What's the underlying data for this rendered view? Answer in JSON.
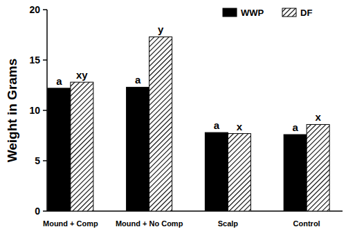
{
  "chart_data": {
    "type": "bar",
    "y_label": "Weight in Grams",
    "categories": [
      "Mound + Comp",
      "Mound + No Comp",
      "Scalp",
      "Control"
    ],
    "series": [
      {
        "name": "WWP",
        "color": "#000000",
        "values": [
          12.2,
          12.3,
          7.8,
          7.6
        ],
        "letters": [
          "a",
          "a",
          "a",
          "a"
        ]
      },
      {
        "name": "DF",
        "color": "#000000",
        "values": [
          12.8,
          17.3,
          7.7,
          8.6
        ],
        "letters": [
          "xy",
          "y",
          "x",
          "x"
        ]
      }
    ],
    "ylim": [
      0,
      20
    ],
    "yticks": [
      0,
      5,
      10,
      15,
      20
    ],
    "grid": false,
    "legend": "top-right"
  }
}
